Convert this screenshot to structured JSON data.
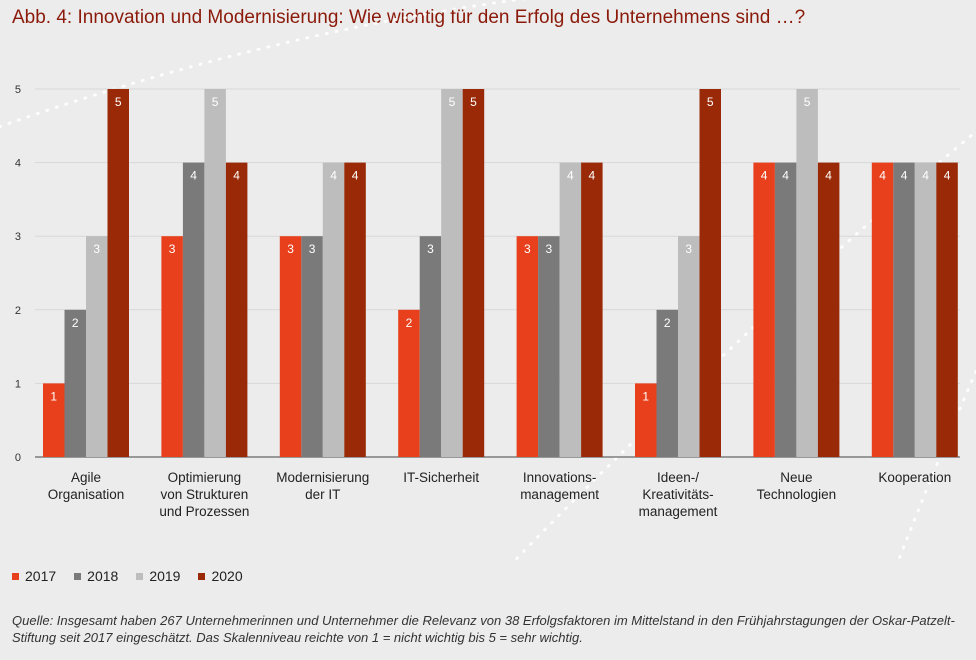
{
  "title": "Abb. 4:  Innovation und Modernisierung: Wie wichtig für den Erfolg des Unternehmens sind …?",
  "source": "Quelle: Insgesamt haben 267 Unternehmerinnen und Unternehmer die Relevanz von 38 Erfolgsfaktoren im Mittelstand in den Frühjahrstagungen der Oskar-Patzelt-Stiftung seit 2017 eingeschätzt. Das Skalenniveau reichte von 1 = nicht wichtig bis 5 = sehr wichtig.",
  "colors": {
    "2017": "#e8401c",
    "2018": "#7a7a7a",
    "2019": "#bdbdbd",
    "2020": "#9a2a07"
  },
  "chart_data": {
    "type": "bar",
    "ylim": [
      0,
      5
    ],
    "yticks": [
      "0",
      "1",
      "2",
      "3",
      "4",
      "5"
    ],
    "grid": true,
    "legend": "bottom-left",
    "categories": [
      [
        "Agile",
        "Organisation"
      ],
      [
        "Optimierung",
        "von Strukturen",
        "und Prozessen"
      ],
      [
        "Modernisierung",
        "der IT"
      ],
      [
        "IT-Sicherheit"
      ],
      [
        "Innovations-",
        "management"
      ],
      [
        "Ideen-/",
        "Kreativitäts-",
        "management"
      ],
      [
        "Neue",
        "Technologien"
      ],
      [
        "Kooperation"
      ]
    ],
    "series": [
      {
        "name": "2017",
        "values": [
          1,
          3,
          3,
          2,
          3,
          1,
          4,
          4
        ]
      },
      {
        "name": "2018",
        "values": [
          2,
          4,
          3,
          3,
          3,
          2,
          4,
          4
        ]
      },
      {
        "name": "2019",
        "values": [
          3,
          5,
          4,
          5,
          4,
          3,
          5,
          4
        ]
      },
      {
        "name": "2020",
        "values": [
          5,
          4,
          4,
          5,
          4,
          5,
          4,
          4
        ]
      }
    ]
  }
}
